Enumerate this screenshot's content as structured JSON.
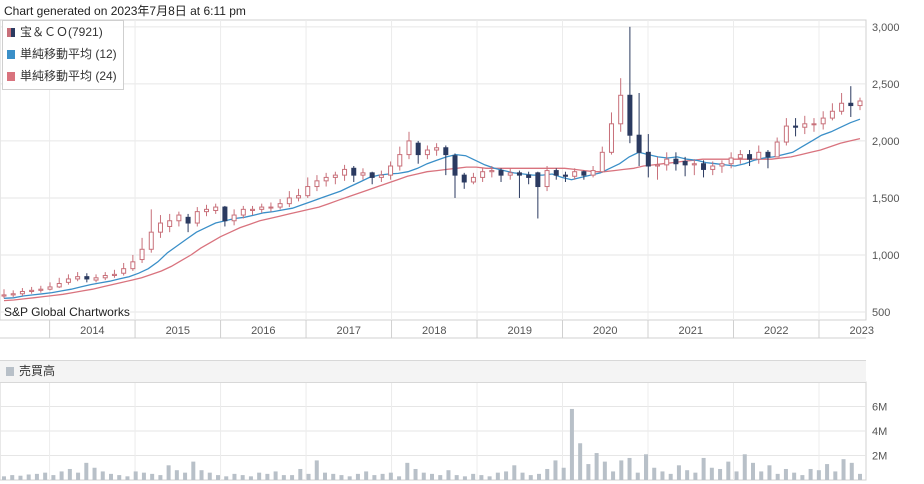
{
  "header": {
    "generated_text": "Chart generated on 2023年7月8日 at 6:11 pm"
  },
  "legend": {
    "items": [
      {
        "label": "宝＆ＣＯ(7921)",
        "type": "candlestick"
      },
      {
        "label": "単純移動平均 (12)",
        "color": "#3a8fc8"
      },
      {
        "label": "単純移動平均 (24)",
        "color": "#d9737e"
      }
    ]
  },
  "credit": "S&P Global Chartworks",
  "volume_title": "売買高",
  "colors": {
    "up": "#c8707a",
    "down": "#2b3a60",
    "sma12": "#3a8fc8",
    "sma24": "#d9737e",
    "volume": "#b8c0c8"
  },
  "chart_data": [
    {
      "type": "candlestick",
      "series_name": "宝＆ＣＯ(7921)",
      "x_labels": [
        "2014",
        "2015",
        "2016",
        "2017",
        "2018",
        "2019",
        "2020",
        "2021",
        "2022",
        "2023"
      ],
      "y_ticks": [
        "500",
        "1,000",
        "1,500",
        "2,000",
        "2,500",
        "3,000"
      ],
      "ylim": [
        430,
        3060
      ],
      "x_range": [
        2013.42,
        2023.55
      ],
      "grid": true,
      "close": [
        650,
        660,
        680,
        690,
        700,
        720,
        750,
        790,
        810,
        790,
        800,
        820,
        830,
        880,
        940,
        1050,
        1200,
        1280,
        1300,
        1350,
        1280,
        1380,
        1400,
        1420,
        1300,
        1350,
        1400,
        1400,
        1420,
        1420,
        1450,
        1500,
        1520,
        1600,
        1650,
        1680,
        1700,
        1750,
        1700,
        1720,
        1680,
        1700,
        1780,
        1880,
        2000,
        1880,
        1920,
        1940,
        1880,
        1700,
        1640,
        1680,
        1730,
        1740,
        1700,
        1720,
        1700,
        1680,
        1600,
        1740,
        1700,
        1690,
        1730,
        1700,
        1740,
        1900,
        2150,
        2400,
        2050,
        1900,
        1780,
        1790,
        1840,
        1800,
        1790,
        1800,
        1750,
        1780,
        1800,
        1850,
        1880,
        1840,
        1900,
        1860,
        1990,
        2130,
        2120,
        2150,
        2150,
        2200,
        2260,
        2330,
        2310,
        2350
      ],
      "open": [
        640,
        650,
        660,
        680,
        690,
        700,
        720,
        760,
        790,
        810,
        780,
        800,
        820,
        840,
        880,
        960,
        1050,
        1200,
        1250,
        1300,
        1330,
        1280,
        1380,
        1390,
        1420,
        1300,
        1350,
        1390,
        1400,
        1420,
        1420,
        1450,
        1500,
        1520,
        1600,
        1650,
        1680,
        1700,
        1760,
        1700,
        1720,
        1680,
        1700,
        1780,
        1880,
        1980,
        1880,
        1920,
        1940,
        1870,
        1700,
        1640,
        1680,
        1730,
        1740,
        1700,
        1720,
        1700,
        1720,
        1600,
        1740,
        1700,
        1690,
        1730,
        1700,
        1730,
        1900,
        2150,
        2400,
        2050,
        1900,
        1780,
        1790,
        1840,
        1820,
        1790,
        1800,
        1750,
        1780,
        1800,
        1850,
        1880,
        1840,
        1900,
        1860,
        1990,
        2130,
        2120,
        2150,
        2150,
        2200,
        2260,
        2330,
        2310
      ],
      "high": [
        700,
        690,
        710,
        720,
        730,
        760,
        800,
        830,
        850,
        840,
        830,
        850,
        870,
        930,
        1000,
        1150,
        1400,
        1350,
        1360,
        1380,
        1360,
        1420,
        1440,
        1450,
        1430,
        1400,
        1430,
        1430,
        1450,
        1460,
        1490,
        1560,
        1580,
        1680,
        1700,
        1720,
        1730,
        1790,
        1780,
        1760,
        1730,
        1740,
        1820,
        1950,
        2080,
        2000,
        1960,
        1980,
        1960,
        1890,
        1720,
        1720,
        1760,
        1780,
        1760,
        1760,
        1740,
        1730,
        1730,
        1780,
        1760,
        1730,
        1760,
        1740,
        1780,
        1950,
        2250,
        2550,
        3000,
        2420,
        2060,
        1860,
        1900,
        1900,
        1860,
        1840,
        1830,
        1820,
        1830,
        1900,
        1920,
        1920,
        1960,
        1920,
        2030,
        2200,
        2200,
        2220,
        2200,
        2260,
        2330,
        2420,
        2480,
        2380
      ],
      "low": [
        620,
        630,
        640,
        660,
        670,
        690,
        710,
        740,
        770,
        760,
        760,
        780,
        800,
        820,
        860,
        930,
        1020,
        1150,
        1200,
        1250,
        1200,
        1250,
        1340,
        1360,
        1250,
        1260,
        1320,
        1350,
        1370,
        1380,
        1400,
        1420,
        1470,
        1500,
        1560,
        1600,
        1620,
        1650,
        1640,
        1660,
        1620,
        1640,
        1660,
        1740,
        1840,
        1800,
        1840,
        1870,
        1700,
        1500,
        1580,
        1620,
        1640,
        1680,
        1640,
        1660,
        1500,
        1620,
        1320,
        1560,
        1660,
        1640,
        1660,
        1660,
        1680,
        1720,
        1880,
        2080,
        1980,
        1780,
        1680,
        1660,
        1740,
        1740,
        1690,
        1700,
        1680,
        1700,
        1720,
        1760,
        1800,
        1780,
        1800,
        1760,
        1860,
        1960,
        2040,
        2060,
        2080,
        2100,
        2180,
        2230,
        2210,
        2270
      ],
      "sma12": [
        620,
        625,
        640,
        650,
        660,
        670,
        685,
        700,
        720,
        740,
        755,
        770,
        790,
        810,
        840,
        880,
        940,
        1020,
        1080,
        1140,
        1200,
        1240,
        1280,
        1300,
        1320,
        1330,
        1350,
        1370,
        1380,
        1395,
        1410,
        1440,
        1470,
        1500,
        1530,
        1560,
        1600,
        1640,
        1680,
        1700,
        1710,
        1715,
        1730,
        1760,
        1800,
        1830,
        1860,
        1880,
        1870,
        1830,
        1790,
        1760,
        1740,
        1720,
        1710,
        1700,
        1700,
        1710,
        1680,
        1660,
        1680,
        1700,
        1720,
        1760,
        1800,
        1860,
        1900,
        1880,
        1860,
        1850,
        1860,
        1840,
        1830,
        1810,
        1800,
        1790,
        1780,
        1800,
        1830,
        1850,
        1860,
        1880,
        1900,
        1950,
        2000,
        2050,
        2080,
        2120,
        2160,
        2190
      ],
      "sma24": [
        600,
        605,
        615,
        625,
        635,
        645,
        655,
        670,
        685,
        700,
        720,
        740,
        760,
        780,
        800,
        830,
        860,
        900,
        950,
        1000,
        1060,
        1110,
        1160,
        1200,
        1240,
        1270,
        1300,
        1320,
        1340,
        1360,
        1380,
        1400,
        1420,
        1450,
        1480,
        1510,
        1540,
        1570,
        1600,
        1630,
        1660,
        1690,
        1710,
        1730,
        1740,
        1750,
        1760,
        1770,
        1770,
        1760,
        1760,
        1760,
        1760,
        1760,
        1760,
        1760,
        1760,
        1760,
        1750,
        1740,
        1730,
        1730,
        1740,
        1750,
        1760,
        1780,
        1790,
        1800,
        1810,
        1820,
        1830,
        1840,
        1840,
        1840,
        1840,
        1840,
        1840,
        1840,
        1840,
        1850,
        1860,
        1880,
        1900,
        1920,
        1950,
        1980,
        2000,
        2020
      ]
    },
    {
      "type": "bar",
      "series_name": "売買高",
      "y_ticks": [
        "2M",
        "4M",
        "6M"
      ],
      "ylim": [
        0,
        8000000
      ],
      "values": [
        300000,
        400000,
        350000,
        450000,
        500000,
        600000,
        400000,
        700000,
        900000,
        600000,
        1400000,
        1000000,
        700000,
        500000,
        400000,
        300000,
        700000,
        600000,
        500000,
        400000,
        1200000,
        800000,
        600000,
        1500000,
        800000,
        600000,
        400000,
        300000,
        500000,
        400000,
        300000,
        600000,
        500000,
        700000,
        400000,
        400000,
        900000,
        500000,
        1600000,
        600000,
        500000,
        400000,
        300000,
        500000,
        700000,
        400000,
        500000,
        600000,
        300000,
        1400000,
        900000,
        600000,
        500000,
        400000,
        800000,
        400000,
        300000,
        500000,
        400000,
        300000,
        600000,
        700000,
        1200000,
        600000,
        400000,
        500000,
        900000,
        1600000,
        1000000,
        5800000,
        3000000,
        1300000,
        2200000,
        1500000,
        700000,
        1600000,
        1800000,
        600000,
        2100000,
        1000000,
        700000,
        500000,
        1200000,
        800000,
        600000,
        1800000,
        1000000,
        900000,
        1500000,
        700000,
        2100000,
        1400000,
        700000,
        1200000,
        500000,
        900000,
        600000,
        400000,
        900000,
        800000,
        1300000,
        700000,
        1700000,
        1400000,
        500000
      ]
    }
  ]
}
